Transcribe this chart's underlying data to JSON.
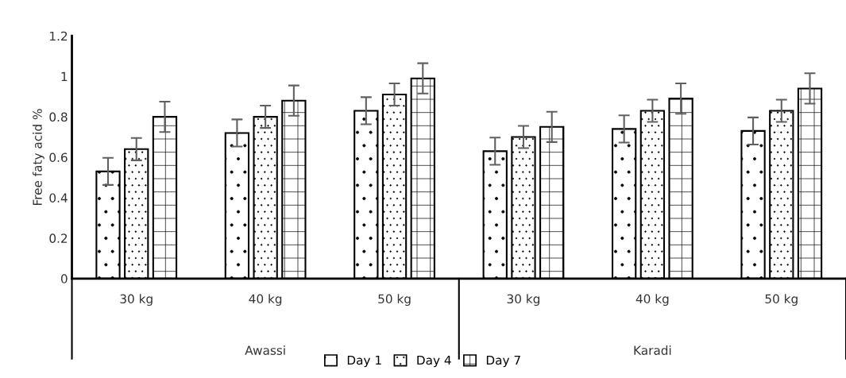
{
  "chart_data": {
    "type": "bar",
    "ylabel": "Free faty acid %",
    "categories": [
      "30 kg",
      "40 kg",
      "50 kg",
      "30 kg",
      "40 kg",
      "50 kg"
    ],
    "annotations": [
      "Awassi",
      "Karadi"
    ],
    "series": [
      {
        "name": "Day 1",
        "color": "#ffffff",
        "values": [
          0.53,
          0.72,
          0.83,
          0.63,
          0.74,
          0.73
        ],
        "errors": [
          0.067,
          0.067,
          0.067,
          0.067,
          0.067,
          0.067
        ]
      },
      {
        "name": "Day 4",
        "color": "#ffffff",
        "values": [
          0.64,
          0.8,
          0.91,
          0.7,
          0.83,
          0.83
        ],
        "errors": [
          0.055,
          0.055,
          0.055,
          0.055,
          0.055,
          0.055
        ]
      },
      {
        "name": "Day 7",
        "color": "#ffffff",
        "values": [
          0.8,
          0.88,
          0.99,
          0.75,
          0.89,
          0.94
        ],
        "errors": [
          0.075,
          0.075,
          0.075,
          0.075,
          0.075,
          0.075
        ]
      }
    ],
    "ylim": [
      0,
      1.2
    ],
    "yticks": [
      0,
      0.2,
      0.4,
      0.6,
      0.8,
      1,
      1.2
    ],
    "grid": false,
    "legend": "bottom"
  }
}
